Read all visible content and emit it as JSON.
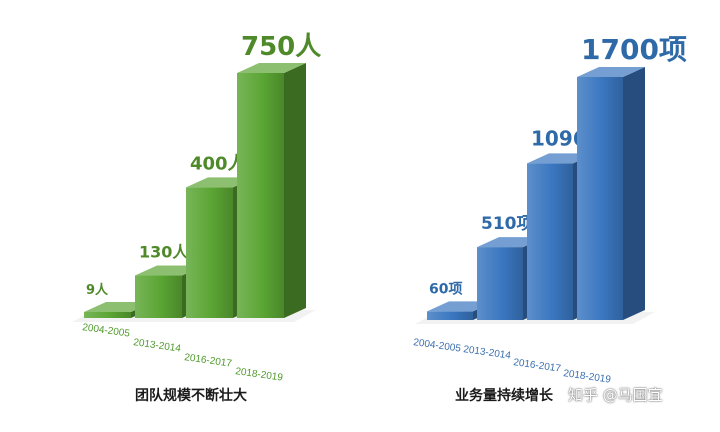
{
  "chart_data": [
    {
      "type": "bar",
      "style": "3d",
      "categories": [
        "2004-2005",
        "2013-2014",
        "2016-2017",
        "2018-2019"
      ],
      "values": [
        9,
        130,
        400,
        750
      ],
      "data_labels": [
        "9人",
        "130人",
        "400人",
        "750人"
      ],
      "caption": "团队规模不断壮大",
      "color": "#5aa533",
      "label_color": "#4f8a2a",
      "tick_color": "#4f9a2c"
    },
    {
      "type": "bar",
      "style": "3d",
      "categories": [
        "2004-2005",
        "2013-2014",
        "2016-2017",
        "2018-2019"
      ],
      "values": [
        60,
        510,
        1096,
        1700
      ],
      "data_labels": [
        "60项",
        "510项",
        "1096项",
        "1700项"
      ],
      "caption": "业务量持续增长",
      "color": "#3a76c0",
      "label_color": "#2f6aa8",
      "tick_color": "#3b6fb0"
    }
  ],
  "watermark": "知乎 @马国宜"
}
